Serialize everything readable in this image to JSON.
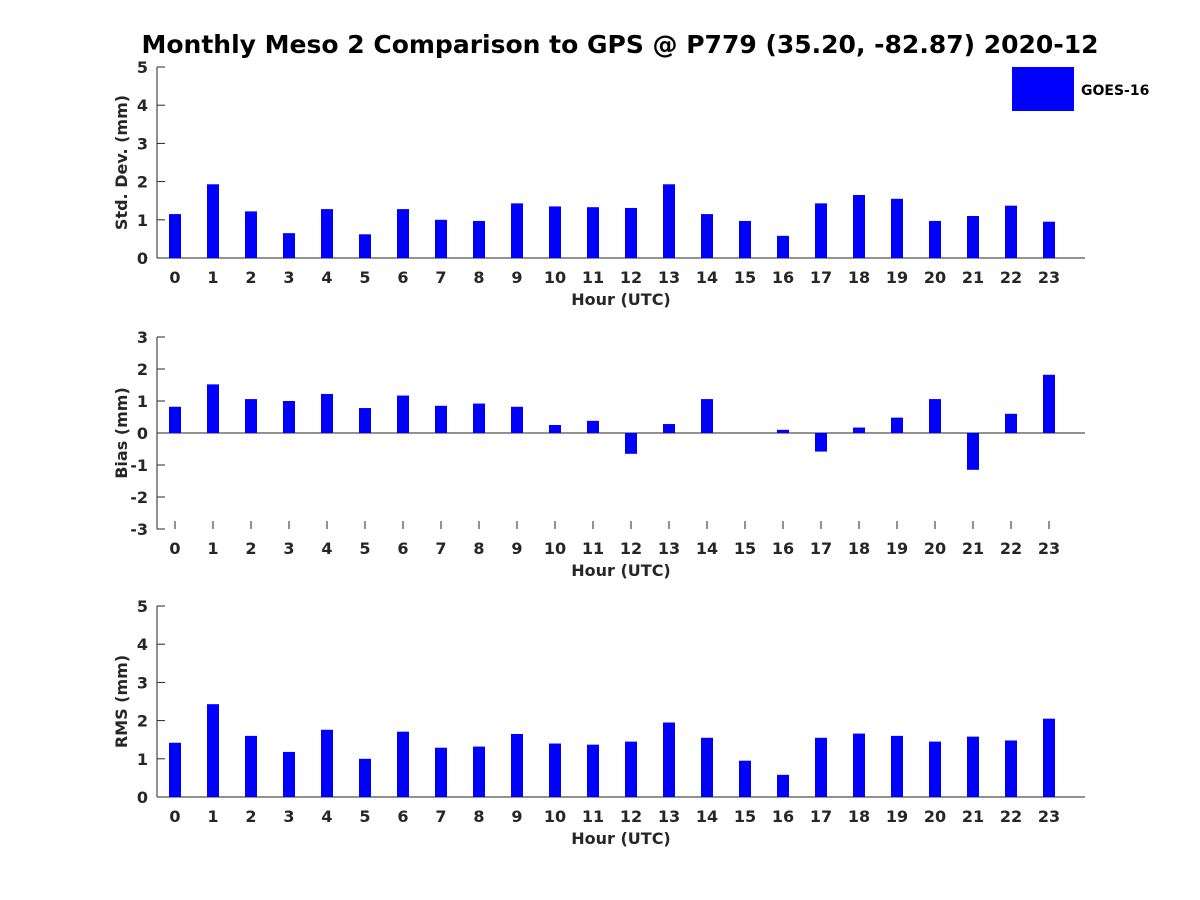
{
  "chart_data": {
    "title": "Monthly Meso 2 Comparison to GPS @ P779 (35.20, -82.87) 2020-12",
    "legend": {
      "label": "GOES-16",
      "color": "#0000ff",
      "placement": "top-right"
    },
    "series_color": "#0000ff",
    "panels": [
      {
        "type": "bar",
        "xlabel": "Hour (UTC)",
        "ylabel": "Std. Dev. (mm)",
        "ylim": [
          0,
          5
        ],
        "yticks": [
          "0",
          "1",
          "2",
          "3",
          "4",
          "5"
        ],
        "categories": [
          "0",
          "1",
          "2",
          "3",
          "4",
          "5",
          "6",
          "7",
          "8",
          "9",
          "10",
          "11",
          "12",
          "13",
          "14",
          "15",
          "16",
          "17",
          "18",
          "19",
          "20",
          "21",
          "22",
          "23"
        ],
        "values": [
          1.15,
          1.93,
          1.22,
          0.65,
          1.28,
          0.62,
          1.28,
          1.0,
          0.97,
          1.43,
          1.35,
          1.33,
          1.31,
          1.93,
          1.15,
          0.97,
          0.58,
          1.43,
          1.65,
          1.55,
          0.97,
          1.1,
          1.37,
          0.95
        ]
      },
      {
        "type": "bar",
        "xlabel": "Hour (UTC)",
        "ylabel": "Bias (mm)",
        "ylim": [
          -3,
          3
        ],
        "yticks": [
          "-3",
          "-2",
          "-1",
          "0",
          "1",
          "2",
          "3"
        ],
        "categories": [
          "0",
          "1",
          "2",
          "3",
          "4",
          "5",
          "6",
          "7",
          "8",
          "9",
          "10",
          "11",
          "12",
          "13",
          "14",
          "15",
          "16",
          "17",
          "18",
          "19",
          "20",
          "21",
          "22",
          "23"
        ],
        "values": [
          0.82,
          1.52,
          1.06,
          1.0,
          1.22,
          0.78,
          1.17,
          0.85,
          0.92,
          0.82,
          0.25,
          0.38,
          -0.65,
          0.28,
          1.06,
          0.0,
          0.1,
          -0.58,
          0.17,
          0.48,
          1.06,
          -1.15,
          0.6,
          1.82
        ]
      },
      {
        "type": "bar",
        "xlabel": "Hour (UTC)",
        "ylabel": "RMS (mm)",
        "ylim": [
          0,
          5
        ],
        "yticks": [
          "0",
          "1",
          "2",
          "3",
          "4",
          "5"
        ],
        "categories": [
          "0",
          "1",
          "2",
          "3",
          "4",
          "5",
          "6",
          "7",
          "8",
          "9",
          "10",
          "11",
          "12",
          "13",
          "14",
          "15",
          "16",
          "17",
          "18",
          "19",
          "20",
          "21",
          "22",
          "23"
        ],
        "values": [
          1.42,
          2.43,
          1.6,
          1.18,
          1.76,
          1.0,
          1.71,
          1.29,
          1.32,
          1.65,
          1.4,
          1.37,
          1.45,
          1.95,
          1.55,
          0.95,
          0.58,
          1.55,
          1.66,
          1.6,
          1.45,
          1.58,
          1.48,
          2.05
        ]
      }
    ]
  }
}
